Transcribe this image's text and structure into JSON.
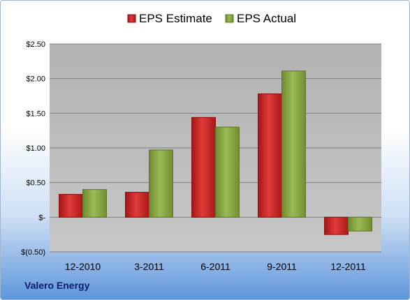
{
  "company": "Valero Energy",
  "chart_data": {
    "type": "bar",
    "categories": [
      "12-2010",
      "3-2011",
      "6-2011",
      "9-2011",
      "12-2011"
    ],
    "series": [
      {
        "name": "EPS Estimate",
        "color": "#d42a2a",
        "values": [
          0.33,
          0.36,
          1.44,
          1.78,
          -0.25
        ]
      },
      {
        "name": "EPS Actual",
        "color": "#8caa46",
        "values": [
          0.4,
          0.97,
          1.3,
          2.11,
          -0.2
        ]
      }
    ],
    "ylim": [
      -0.5,
      2.5
    ],
    "yticks": [
      2.5,
      2.0,
      1.5,
      1.0,
      0.5,
      0,
      -0.5
    ],
    "ytick_labels": [
      "$2.50",
      "$2.00",
      "$1.50",
      "$1.00",
      "$0.50",
      "$-",
      "$(0.50)"
    ],
    "grid": true,
    "legend": "top-center"
  }
}
